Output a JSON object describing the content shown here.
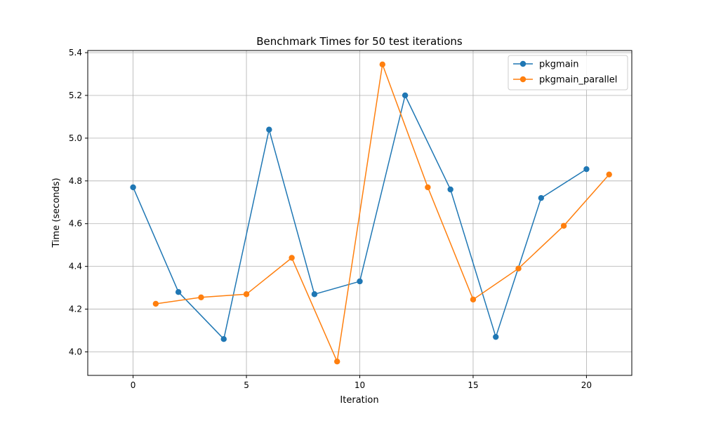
{
  "chart_data": {
    "type": "line",
    "title": "Benchmark Times for 50 test iterations",
    "xlabel": "Iteration",
    "ylabel": "Time (seconds)",
    "xlim": [
      -2,
      22
    ],
    "ylim": [
      3.89,
      5.41
    ],
    "xticks": [
      0,
      5,
      10,
      15,
      20
    ],
    "yticks": [
      4.0,
      4.2,
      4.4,
      4.6,
      4.8,
      5.0,
      5.2,
      5.4
    ],
    "grid": true,
    "legend_position": "top-right",
    "series": [
      {
        "name": "pkgmain",
        "color": "#1f77b4",
        "x": [
          0,
          2,
          4,
          6,
          8,
          10,
          12,
          14,
          16,
          18,
          20
        ],
        "y": [
          4.77,
          4.28,
          4.06,
          5.04,
          4.27,
          4.33,
          5.2,
          4.76,
          4.07,
          4.72,
          4.855
        ]
      },
      {
        "name": "pkgmain_parallel",
        "color": "#ff7f0e",
        "x": [
          1,
          3,
          5,
          7,
          9,
          11,
          13,
          15,
          17,
          19,
          21
        ],
        "y": [
          4.225,
          4.255,
          4.27,
          4.44,
          3.955,
          5.345,
          4.77,
          4.245,
          4.39,
          4.59,
          4.83
        ]
      }
    ]
  }
}
